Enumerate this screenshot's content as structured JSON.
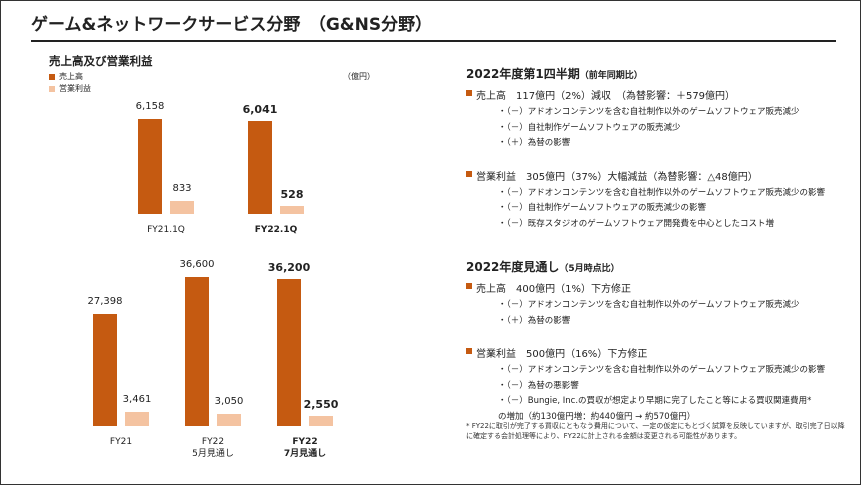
{
  "title": "ゲーム&ネットワークサービス分野　（G&NS分野）",
  "subtitle": "売上高及び営業利益",
  "chart_data": [
    {
      "type": "bar",
      "unit_label": "（億円）",
      "emphasis_index": 1,
      "categories": [
        "FY21.1Q",
        "FY22.1Q"
      ],
      "series": [
        {
          "name": "売上高",
          "color": "#c55a11",
          "values": [
            6158,
            6041
          ],
          "value_labels": [
            "6,158",
            "6,041"
          ]
        },
        {
          "name": "営業利益",
          "color": "#f4c3a1",
          "values": [
            833,
            528
          ],
          "value_labels": [
            "833",
            "528"
          ]
        }
      ]
    },
    {
      "type": "bar",
      "emphasis_index": 2,
      "categories": [
        "FY21",
        "FY22\n5月見通し",
        "FY22\n7月見通し"
      ],
      "series": [
        {
          "color": "#c55a11",
          "values": [
            27398,
            36600,
            36200
          ],
          "value_labels": [
            "27,398",
            "36,600",
            "36,200"
          ]
        },
        {
          "color": "#f4c3a1",
          "values": [
            3461,
            3050,
            2550
          ],
          "value_labels": [
            "3,461",
            "3,050",
            "2,550"
          ]
        }
      ]
    }
  ],
  "sections": [
    {
      "heading": "2022年度第1四半期",
      "note": "（前年同期比）",
      "items": [
        {
          "text": "売上高　117億円（2%）減収　（為替影響：＋579億円）",
          "subs": [
            "・（－）アドオンコンテンツを含む自社制作以外のゲームソフトウェア販売減少",
            "・（－）自社制作ゲームソフトウェアの販売減少",
            "・（＋）為替の影響"
          ]
        },
        {
          "text": "営業利益　305億円（37%）大幅減益（為替影響：△48億円）",
          "subs": [
            "・（－）アドオンコンテンツを含む自社制作以外のゲームソフトウェア販売減少の影響",
            "・（－）自社制作ゲームソフトウェアの販売減少の影響",
            "・（－）既存スタジオのゲームソフトウェア開発費を中心としたコスト増"
          ]
        }
      ]
    },
    {
      "heading": "2022年度見通し",
      "note": "（5月時点比）",
      "items": [
        {
          "text": "売上高　400億円（1%）下方修正",
          "subs": [
            "・（－）アドオンコンテンツを含む自社制作以外のゲームソフトウェア販売減少",
            "・（＋）為替の影響"
          ]
        },
        {
          "text": "営業利益　500億円（16%）下方修正",
          "subs": [
            "・（－）アドオンコンテンツを含む自社制作以外のゲームソフトウェア販売減少の影響",
            "・（－）為替の悪影響",
            "・（－）Bungie, Inc.の買収が想定より早期に完了したこと等による買収関連費用*\nの増加（約130億円増：約440億円 → 約570億円）"
          ]
        }
      ]
    }
  ],
  "footnote": "* FY22に取引が完了する買収にともなう費用について、一定の仮定にもとづく試算を反映していますが、取引完了日以降に確定する会計処理等により、FY22に計上される金額は変更される可能性があります。"
}
